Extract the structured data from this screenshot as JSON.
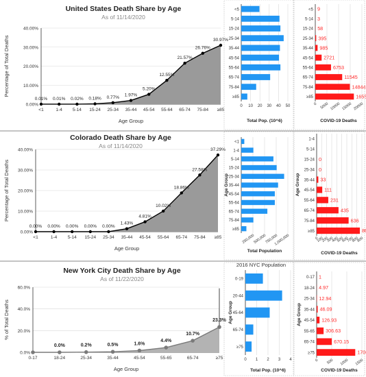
{
  "colors": {
    "area_fill": "#9a9a9a",
    "area_fill_nyc": "#b3b3b3",
    "line": "#000000",
    "line_nyc": "#7a7a7a",
    "bar_blue": "#2196f3",
    "bar_red": "#ff1a1a",
    "label_red": "#ff2a2a",
    "divider": "#8a8a8a"
  },
  "chart_data": [
    {
      "id": "us-share",
      "type": "area",
      "title": "United States Death Share by Age",
      "subtitle": "As of 11/14/2020",
      "xlabel": "Age Group",
      "ylabel": "Percentage of Total Deaths",
      "categories": [
        "<1",
        "1-4",
        "5-14",
        "15-24",
        "25-34",
        "35-44",
        "45-54",
        "55-64",
        "65-74",
        "75-84",
        "≥85"
      ],
      "values": [
        0.01,
        0.01,
        0.02,
        0.18,
        0.77,
        1.97,
        5.2,
        12.55,
        21.57,
        26.76,
        30.97
      ],
      "data_labels": [
        "0.01%",
        "0.01%",
        "0.02%",
        "0.18%",
        "0.77%",
        "1.97%",
        "5.20%",
        "12.55%",
        "21.57%",
        "26.76%",
        "30.97%"
      ],
      "ylim": [
        0,
        40
      ],
      "yticks": [
        "0.00%",
        "10.00%",
        "20.00%",
        "30.00%",
        "40.00%"
      ],
      "tail_value": 31.8
    },
    {
      "id": "us-pop",
      "type": "bar",
      "orientation": "horizontal",
      "xlabel": "Total Pop. (10^6)",
      "categories": [
        "<5",
        "5-14",
        "15-24",
        "25-34",
        "35-44",
        "45-54",
        "55-64",
        "65-74",
        "75-84",
        "≥85"
      ],
      "values": [
        19.5,
        41,
        42,
        45.5,
        41.5,
        40.5,
        42,
        31,
        16,
        6.5
      ],
      "xlim": [
        0,
        50
      ],
      "xticks": [
        "0",
        "10",
        "20",
        "30",
        "40",
        "50"
      ]
    },
    {
      "id": "us-deaths",
      "type": "bar",
      "orientation": "horizontal",
      "xlabel": "COVID-19 Deaths",
      "categories": [
        "<5",
        "5-14",
        "15-24",
        "25-34",
        "35-44",
        "45-54",
        "55-64",
        "65-74",
        "75-84",
        "≥85"
      ],
      "values": [
        9,
        3,
        58,
        395,
        985,
        2721,
        6753,
        11545,
        14844,
        16559
      ],
      "data_labels": [
        "9",
        "3",
        "58",
        "395",
        "985",
        "2721",
        "6753",
        "11545",
        "14844",
        "16559"
      ],
      "xlim": [
        0,
        20000
      ],
      "xticks": [
        "0",
        "5000",
        "10000",
        "15000",
        "20000"
      ]
    },
    {
      "id": "co-share",
      "type": "area",
      "title": "Colorado Death Share by Age",
      "subtitle": "As of 11/14/2020",
      "xlabel": "Age Group",
      "ylabel": "Percentage of Total Deaths",
      "categories": [
        "<1",
        "1-4",
        "5-14",
        "15-24",
        "25-34",
        "35-44",
        "45-54",
        "55-64",
        "65-74",
        "75-84",
        "≥85"
      ],
      "values": [
        0,
        0,
        0,
        0,
        0,
        1.43,
        4.81,
        10.02,
        18.86,
        27.58,
        37.29
      ],
      "data_labels": [
        "0.00%",
        "0.00%",
        "0.00%",
        "0.00%",
        "0.00%",
        "1.43%",
        "4.81%",
        "10.02%",
        "18.86%",
        "27.58%",
        "37.29%"
      ],
      "ylim": [
        0,
        40
      ],
      "yticks": [
        "0.00%",
        "10.00%",
        "20.00%",
        "30.00%",
        "40.00%"
      ]
    },
    {
      "id": "co-pop",
      "type": "bar",
      "orientation": "horizontal",
      "ylabel": "Age Group",
      "xlabel": "Total Population",
      "categories": [
        "<1",
        "1-4",
        "5-14",
        "15-24",
        "25-34",
        "35-44",
        "45-54",
        "55-64",
        "65-74",
        "75-84",
        "≥85"
      ],
      "values": [
        65000,
        260000,
        690000,
        760000,
        920000,
        790000,
        720000,
        720000,
        560000,
        260000,
        110000
      ],
      "xlim": [
        0,
        1000000
      ],
      "xticks": [
        "250,000",
        "500,000",
        "750,000",
        "1,000,000"
      ],
      "xtick_values": [
        250000,
        500000,
        750000,
        1000000
      ]
    },
    {
      "id": "co-deaths",
      "type": "bar",
      "orientation": "horizontal",
      "ylabel": "Age Group",
      "xlabel": "COVID-19 Deaths",
      "categories": [
        "1-4",
        "5-14",
        "15-24",
        "25-34",
        "35-44",
        "45-54",
        "55-64",
        "65-74",
        "75-84",
        "≥85"
      ],
      "values": [
        0,
        0,
        0,
        0,
        33,
        111,
        231,
        435,
        636,
        860
      ],
      "data_labels": [
        "",
        "",
        "0",
        "0",
        "33",
        "111",
        "231",
        "435",
        "636",
        "860"
      ],
      "xlim": [
        0,
        900
      ],
      "xticks": [
        "0",
        "100",
        "200",
        "300",
        "400",
        "500",
        "600",
        "700",
        "800",
        "900"
      ]
    },
    {
      "id": "nyc-share",
      "type": "area",
      "title": "New York City Death Share by Age",
      "subtitle": "As of 11/22/2020",
      "xlabel": "Age Group",
      "ylabel": "% of Total Deaths",
      "categories": [
        "0-17",
        "18-24",
        "25-34",
        "35-44",
        "45-54",
        "55-65",
        "65-74",
        "≥75"
      ],
      "values": [
        0,
        0.0,
        0.2,
        0.5,
        1.6,
        4.4,
        10.7,
        23.3
      ],
      "data_labels": [
        "",
        "0.0%",
        "0.2%",
        "0.5%",
        "1.6%",
        "4.4%",
        "10.7%",
        "23.3%"
      ],
      "ylim": [
        0,
        60
      ],
      "yticks": [
        "0.0%",
        "20.0%",
        "40.0%",
        "60.0%"
      ],
      "tail_value": 59
    },
    {
      "id": "nyc-pop",
      "type": "bar",
      "orientation": "horizontal",
      "title": "2016 NYC Population",
      "ylabel": "Age Group",
      "xlabel": "Total Pop. (10^6)",
      "categories": [
        "0-19",
        "20-44",
        "45-64",
        "65-74",
        "≥75"
      ],
      "values": [
        1.55,
        3.25,
        2.15,
        0.7,
        0.55
      ],
      "xlim": [
        0,
        4
      ],
      "xticks": [
        "0",
        "1",
        "2",
        "3",
        "4"
      ]
    },
    {
      "id": "nyc-deaths",
      "type": "bar",
      "orientation": "horizontal",
      "ylabel": "Age Group",
      "xlabel": "COVID-19 Deaths",
      "categories": [
        "0-17",
        "18-24",
        "25-34",
        "35-44",
        "45-54",
        "55-65",
        "65-74",
        "≥75"
      ],
      "values": [
        1,
        4.97,
        12.94,
        46.09,
        126.93,
        306.63,
        670.15,
        1706.34
      ],
      "data_labels": [
        "1",
        "4.97",
        "12.94",
        "46.09",
        "126.93",
        "306.63",
        "670.15",
        "1706.34"
      ],
      "xlim": [
        0,
        2000
      ],
      "xticks": [
        "0",
        "500",
        "1000",
        "1500"
      ]
    }
  ]
}
